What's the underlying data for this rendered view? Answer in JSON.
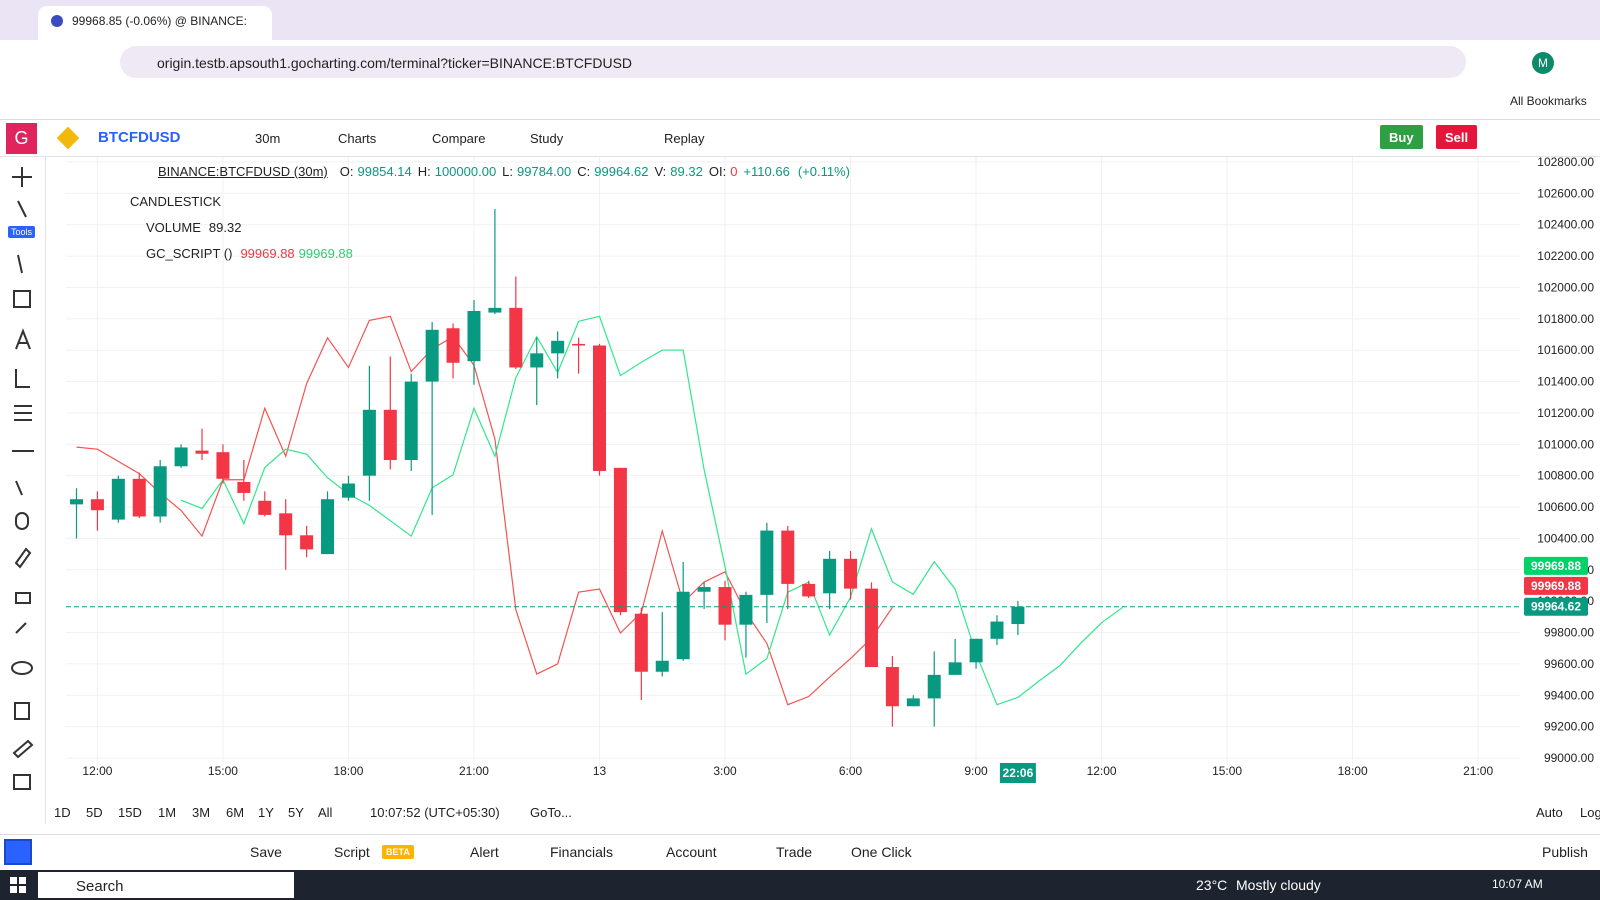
{
  "browser": {
    "tab_title": "99968.85 (-0.06%) @ BINANCE:",
    "url": "origin.testb.apsouth1.gocharting.com/terminal?ticker=BINANCE:BTCFDUSD",
    "profile": "M",
    "bookmarks": "All Bookmarks"
  },
  "toolbar": {
    "logo": "G",
    "symbol": "BTCFDUSD",
    "interval": "30m",
    "items": [
      "Charts",
      "Compare",
      "Study",
      "Replay"
    ],
    "buy": "Buy",
    "sell": "Sell"
  },
  "left_toolbar": {
    "tools_badge": "Tools"
  },
  "legend": {
    "symbol": "BINANCE:BTCFDUSD (30m)",
    "fields": [
      [
        "O:",
        "99854.14"
      ],
      [
        "H:",
        "100000.00"
      ],
      [
        "L:",
        "99784.00"
      ],
      [
        "C:",
        "99964.62"
      ],
      [
        "V:",
        "89.32"
      ],
      [
        "OI:",
        "0"
      ]
    ],
    "change": "+110.66",
    "change_pct": "(+0.11%)"
  },
  "indicators": [
    {
      "name": "CANDLESTICK",
      "values": []
    },
    {
      "name": "VOLUME",
      "values": [
        "89.32"
      ]
    },
    {
      "name": "GC_SCRIPT ()",
      "values": [
        "99969.88",
        "99969.88"
      ]
    }
  ],
  "chart_data": {
    "type": "candlestick",
    "up_color": "#089981",
    "down_color": "#f23645",
    "categories": [
      null,
      "12:00",
      null,
      null,
      null,
      null,
      null,
      "15:00",
      null,
      null,
      null,
      null,
      null,
      "18:00",
      null,
      null,
      null,
      null,
      null,
      "21:00",
      null,
      null,
      null,
      null,
      null,
      "13",
      null,
      null,
      null,
      null,
      null,
      "3:00",
      null,
      null,
      null,
      null,
      null,
      "6:00",
      null,
      null,
      null,
      null,
      null,
      "9:00",
      null,
      null,
      null,
      null,
      null,
      "12:00",
      null,
      null,
      null,
      null,
      null,
      "15:00",
      null,
      null,
      null,
      null,
      null,
      "18:00",
      null,
      null,
      null,
      null,
      null,
      "21:00",
      null,
      null
    ],
    "open": [
      100617,
      100650,
      100520,
      100780,
      100540,
      100860,
      100960,
      100950,
      100760,
      100640,
      100560,
      100420,
      100300,
      100660,
      100800,
      101220,
      100900,
      101400,
      101740,
      101530,
      101840,
      101870,
      101490,
      101580,
      101640,
      101630,
      100850,
      99920,
      99550,
      99630,
      100060,
      100090,
      99850,
      100040,
      100450,
      100110,
      100050,
      100270,
      100080,
      99580,
      99330,
      99380,
      99530,
      99610,
      99760,
      99854.14,
      null,
      null,
      null,
      null,
      null,
      null,
      null,
      null,
      null,
      null,
      null,
      null,
      null,
      null,
      null,
      null,
      null,
      null,
      null,
      null,
      null,
      null,
      null,
      null
    ],
    "high": [
      100720,
      100700,
      100800,
      100820,
      100900,
      101000,
      101100,
      101000,
      100900,
      100700,
      100650,
      100480,
      100700,
      100800,
      101500,
      101560,
      101450,
      101780,
      101770,
      101920,
      102500,
      102070,
      101680,
      101720,
      101680,
      101640,
      100850,
      99960,
      99930,
      100250,
      100120,
      100130,
      100060,
      100500,
      100480,
      100130,
      100320,
      100320,
      100120,
      99650,
      99400,
      99680,
      99760,
      99760,
      99910,
      100000,
      null,
      null,
      null,
      null,
      null,
      null,
      null,
      null,
      null,
      null,
      null,
      null,
      null,
      null,
      null,
      null,
      null,
      null,
      null,
      null,
      null,
      null,
      null,
      null
    ],
    "low": [
      100400,
      100450,
      100500,
      100530,
      100500,
      100850,
      100900,
      100750,
      100640,
      100540,
      100200,
      100280,
      100300,
      100640,
      100640,
      100840,
      100830,
      100550,
      101420,
      101380,
      101830,
      101480,
      101250,
      101420,
      101450,
      100800,
      99910,
      99370,
      99520,
      99620,
      99950,
      99750,
      99640,
      99860,
      99950,
      100020,
      99950,
      100010,
      99580,
      99200,
      99330,
      99200,
      99530,
      99570,
      99720,
      99784,
      null,
      null,
      null,
      null,
      null,
      null,
      null,
      null,
      null,
      null,
      null,
      null,
      null,
      null,
      null,
      null,
      null,
      null,
      null,
      null,
      null,
      null,
      null,
      null
    ],
    "close": [
      100650,
      100580,
      100780,
      100540,
      100860,
      100980,
      100940,
      100780,
      100690,
      100550,
      100420,
      100330,
      100650,
      100750,
      101220,
      100900,
      101400,
      101730,
      101520,
      101850,
      101870,
      101490,
      101580,
      101660,
      101630,
      100830,
      99930,
      99550,
      99620,
      100060,
      100090,
      99850,
      100040,
      100450,
      100110,
      100030,
      100270,
      100080,
      99580,
      99330,
      99380,
      99530,
      99610,
      99760,
      99870,
      99964.62,
      null,
      null,
      null,
      null,
      null,
      null,
      null,
      null,
      null,
      null,
      null,
      null,
      null,
      null,
      null,
      null,
      null,
      null,
      null,
      null,
      null,
      null,
      null,
      null
    ],
    "lines": [
      {
        "color": "#f5524f",
        "values": [
          100982,
          100969,
          100891,
          100813,
          100689,
          100578,
          100415,
          100774,
          100774,
          101230,
          100924,
          101387,
          101679,
          101490,
          101790,
          101816,
          101464,
          101608,
          101686,
          101504,
          101034,
          99946,
          99535,
          99600,
          100057,
          100077,
          99797,
          99927,
          100448,
          99992,
          100122,
          100187,
          99927,
          99731,
          99340,
          99392,
          99516,
          99634,
          99764,
          99960,
          null,
          null,
          null,
          null,
          null,
          null,
          null,
          null,
          null,
          null,
          null,
          null,
          null,
          null,
          null,
          null,
          null,
          null,
          null,
          null,
          null,
          null,
          null,
          null,
          null,
          null,
          null,
          null,
          null,
          null
        ]
      },
      {
        "color": "#2ee88a",
        "values": [
          null,
          null,
          null,
          null,
          null,
          100644,
          100591,
          100774,
          100494,
          100852,
          100969,
          100937,
          100787,
          100683,
          100611,
          100513,
          100415,
          100722,
          100806,
          101230,
          100924,
          101425,
          101686,
          101458,
          101784,
          101816,
          101438,
          101523,
          101601,
          101601,
          100839,
          100220,
          99535,
          99634,
          100057,
          100122,
          99784,
          100025,
          100461,
          100122,
          100044,
          100252,
          100077,
          99666,
          99340,
          99386,
          99490,
          99588,
          99731,
          99862,
          99960,
          null,
          null,
          null,
          null,
          null,
          null,
          null,
          null,
          null,
          null,
          null,
          null,
          null,
          null,
          null,
          null,
          null,
          null,
          null
        ]
      }
    ],
    "ylim": [
      99000,
      102800
    ],
    "yticks": [
      {
        "value": 102800,
        "label": "102800.00"
      },
      {
        "value": 102600,
        "label": "102600.00"
      },
      {
        "value": 102400,
        "label": "102400.00"
      },
      {
        "value": 102200,
        "label": "102200.00"
      },
      {
        "value": 102000,
        "label": "102000.00"
      },
      {
        "value": 101800,
        "label": "101800.00"
      },
      {
        "value": 101600,
        "label": "101600.00"
      },
      {
        "value": 101400,
        "label": "101400.00"
      },
      {
        "value": 101200,
        "label": "101200.00"
      },
      {
        "value": 101000,
        "label": "101000.00"
      },
      {
        "value": 100800,
        "label": "100800.00"
      },
      {
        "value": 100600,
        "label": "100600.00"
      },
      {
        "value": 100400,
        "label": "100400.00"
      },
      {
        "value": 100200,
        "label": "100200.00"
      },
      {
        "value": 100000,
        "label": "100000.00"
      },
      {
        "value": 99800,
        "label": "99800.00"
      },
      {
        "value": 99600,
        "label": "99600.00"
      },
      {
        "value": 99400,
        "label": "99400.00"
      },
      {
        "value": 99200,
        "label": "99200.00"
      },
      {
        "value": 99000,
        "label": "99000.00"
      }
    ],
    "grid": true,
    "price_tags": [
      {
        "value": 99969.88,
        "color": "#00d26a"
      },
      {
        "value": 99969.88,
        "color": "#f23645"
      },
      {
        "value": 99964.62,
        "color": "#089981"
      }
    ],
    "time_tag": "22:06"
  },
  "timeframes": [
    "1D",
    "5D",
    "15D",
    "1M",
    "3M",
    "6M",
    "1Y",
    "5Y",
    "All"
  ],
  "clock": "10:07:52 (UTC+05:30)",
  "goto": "GoTo...",
  "scale_modes": [
    "Auto",
    "Log"
  ],
  "bottom_bar": {
    "items": [
      "Save",
      "Script",
      "Alert",
      "Financials",
      "Account",
      "Trade",
      "One Click"
    ],
    "beta": "BETA",
    "publish": "Publish"
  },
  "taskbar": {
    "search": "Search",
    "weather_temp": "23°C",
    "weather_text": "Mostly cloudy",
    "time": "10:07 AM"
  }
}
